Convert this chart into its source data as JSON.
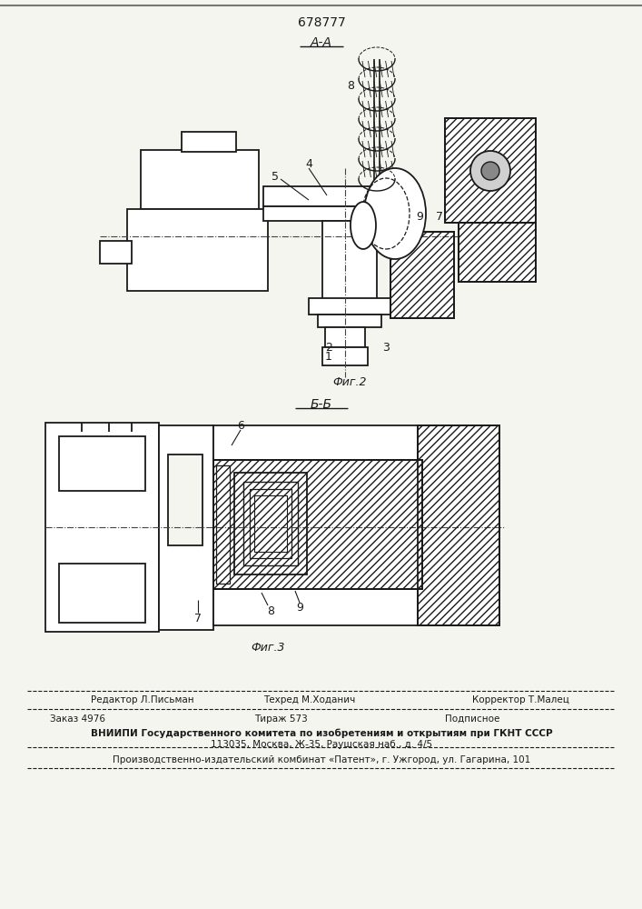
{
  "patent_number": "678777",
  "bg_color": "#f5f5f0",
  "fig_width": 7.07,
  "fig_height": 10.0,
  "section_label_aa": "А-А",
  "section_label_bb": "Б-Б",
  "fig2_label": "Фиг.2",
  "fig3_label": "Фиг.3",
  "footer_editor": "Редактор Л.Письман",
  "footer_techred": "Техред М.Ходанич",
  "footer_corrector": "Корректор Т.Малец",
  "footer_zakaz": "Заказ 4976",
  "footer_tirazh": "Тираж 573",
  "footer_podpisnoe": "Подписное",
  "footer_vniipи": "ВНИИПИ Государственного комитета по изобретениям и открытиям при ГКНТ СССР",
  "footer_address": "113035, Москва, Ж-35, Раушская наб., д. 4/5",
  "footer_patent": "Производственно-издательский комбинат «Патент», г. Ужгород, ул. Гагарина, 101",
  "line_color": "#1a1a1a",
  "text_color": "#1a1a1a"
}
